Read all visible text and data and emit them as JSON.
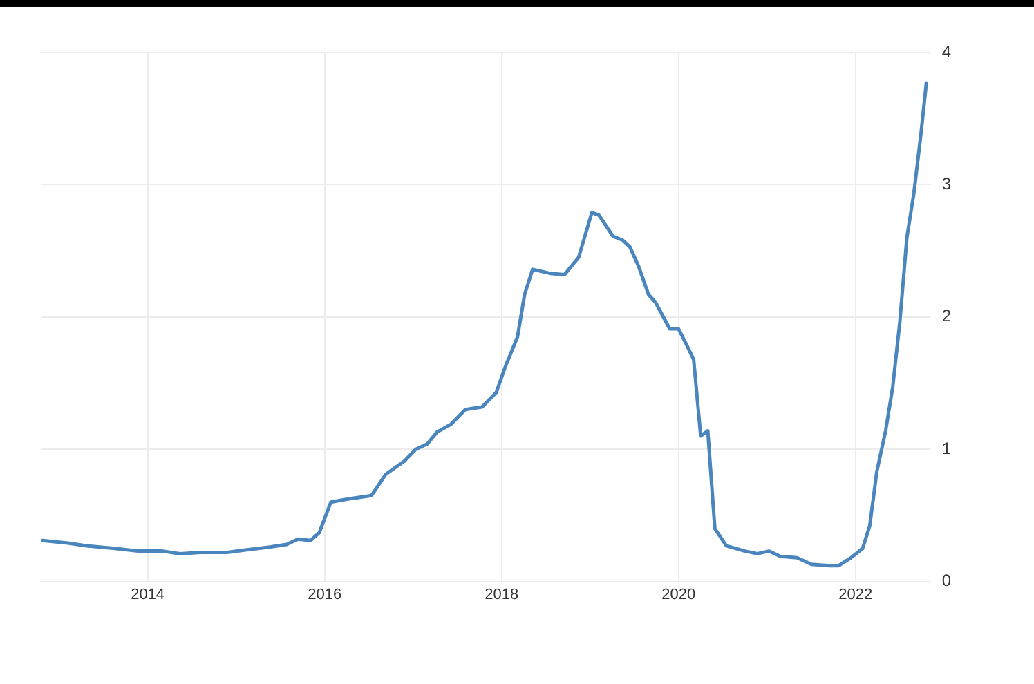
{
  "chart_data": {
    "type": "line",
    "x": [
      2012.81,
      2013.1,
      2013.31,
      2013.63,
      2013.89,
      2014.16,
      2014.37,
      2014.59,
      2014.9,
      2015.12,
      2015.38,
      2015.57,
      2015.7,
      2015.84,
      2015.94,
      2016.07,
      2016.23,
      2016.53,
      2016.58,
      2016.69,
      2016.9,
      2017.03,
      2017.16,
      2017.27,
      2017.43,
      2017.59,
      2017.78,
      2017.94,
      2018.04,
      2018.18,
      2018.26,
      2018.35,
      2018.55,
      2018.71,
      2018.87,
      2019.02,
      2019.1,
      2019.26,
      2019.37,
      2019.45,
      2019.55,
      2019.66,
      2019.74,
      2019.9,
      2020.0,
      2020.09,
      2020.17,
      2020.25,
      2020.33,
      2020.41,
      2020.54,
      2020.75,
      2020.89,
      2021.02,
      2021.15,
      2021.34,
      2021.5,
      2021.71,
      2021.81,
      2021.95,
      2022.08,
      2022.16,
      2022.24,
      2022.34,
      2022.42,
      2022.5,
      2022.58,
      2022.66,
      2022.74,
      2022.8
    ],
    "series": [
      {
        "color": "#4a86bd",
        "values": [
          0.31,
          0.29,
          0.27,
          0.25,
          0.23,
          0.23,
          0.21,
          0.22,
          0.22,
          0.24,
          0.26,
          0.28,
          0.32,
          0.31,
          0.37,
          0.6,
          0.62,
          0.65,
          0.7,
          0.81,
          0.91,
          1.0,
          1.04,
          1.13,
          1.19,
          1.3,
          1.32,
          1.43,
          1.62,
          1.85,
          2.17,
          2.36,
          2.33,
          2.32,
          2.45,
          2.79,
          2.77,
          2.61,
          2.58,
          2.53,
          2.38,
          2.17,
          2.11,
          1.91,
          1.91,
          1.79,
          1.68,
          1.1,
          1.14,
          0.4,
          0.27,
          0.23,
          0.21,
          0.23,
          0.19,
          0.18,
          0.13,
          0.12,
          0.12,
          0.18,
          0.25,
          0.42,
          0.83,
          1.14,
          1.47,
          1.96,
          2.6,
          2.94,
          3.39,
          3.77
        ]
      }
    ],
    "xlim": [
      2012.8,
      2022.85
    ],
    "xticks": [
      2014,
      2016,
      2018,
      2020,
      2022
    ],
    "ylim": [
      0,
      4
    ],
    "yticks": [
      0,
      1,
      2,
      3,
      4
    ],
    "grid": true,
    "legend": false,
    "marker": "none",
    "line_style": "solid"
  }
}
